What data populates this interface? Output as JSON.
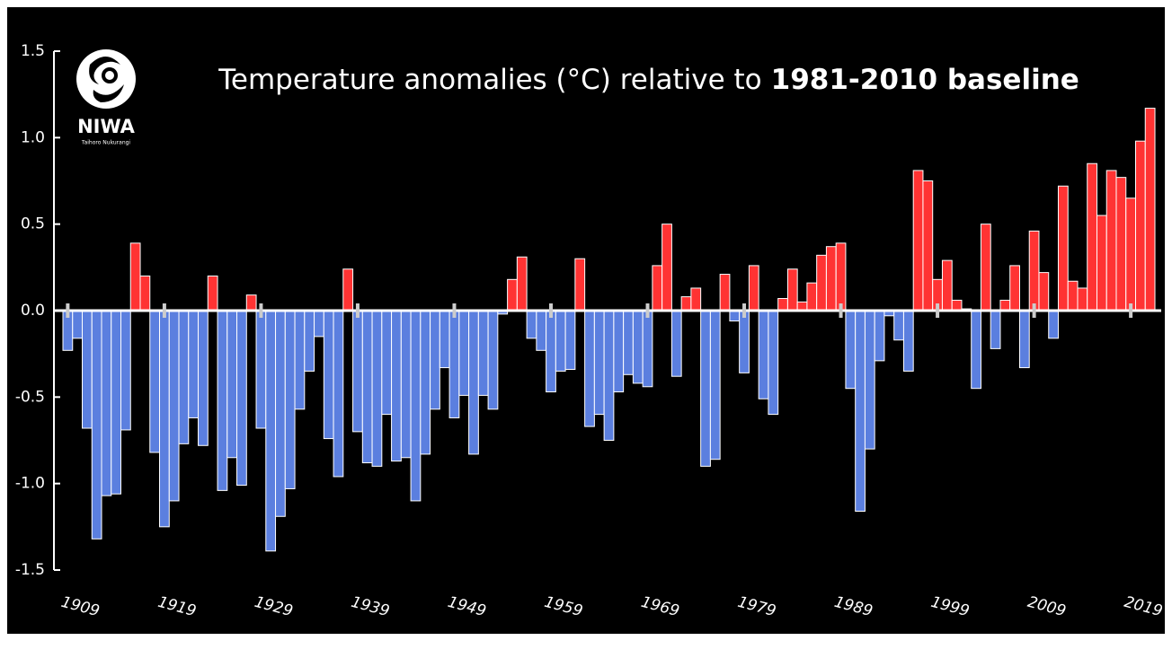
{
  "chart_data": {
    "type": "bar",
    "title": "Temperature anomalies (°C) relative to",
    "title_emphasis": "1981-2010 baseline",
    "logo_name": "NIWA",
    "logo_subtitle": "Taihoro Nukurangi",
    "categories": [
      "1909",
      null,
      null,
      null,
      null,
      null,
      null,
      null,
      null,
      null,
      "1919",
      null,
      null,
      null,
      null,
      null,
      null,
      null,
      null,
      null,
      "1929",
      null,
      null,
      null,
      null,
      null,
      null,
      null,
      null,
      null,
      "1939",
      null,
      null,
      null,
      null,
      null,
      null,
      null,
      null,
      null,
      "1949",
      null,
      null,
      null,
      null,
      null,
      null,
      null,
      null,
      null,
      "1959",
      null,
      null,
      null,
      null,
      null,
      null,
      null,
      null,
      null,
      "1969",
      null,
      null,
      null,
      null,
      null,
      null,
      null,
      null,
      null,
      "1979",
      null,
      null,
      null,
      null,
      null,
      null,
      null,
      null,
      null,
      "1989",
      null,
      null,
      null,
      null,
      null,
      null,
      null,
      null,
      null,
      "1999",
      null,
      null,
      null,
      null,
      null,
      null,
      null,
      null,
      null,
      "2009",
      null,
      null,
      null,
      null,
      null,
      null,
      null,
      null,
      null,
      "2019",
      null,
      null
    ],
    "values": [
      -0.23,
      -0.16,
      -0.68,
      -1.32,
      -1.07,
      -1.06,
      -0.69,
      0.39,
      0.2,
      -0.82,
      -1.25,
      -1.1,
      -0.77,
      -0.62,
      -0.78,
      0.2,
      -1.04,
      -0.85,
      -1.01,
      0.09,
      -0.68,
      -1.39,
      -1.19,
      -1.03,
      -0.57,
      -0.35,
      -0.15,
      -0.74,
      -0.96,
      0.24,
      -0.7,
      -0.88,
      -0.9,
      -0.6,
      -0.87,
      -0.85,
      -1.1,
      -0.83,
      -0.57,
      -0.33,
      -0.62,
      -0.49,
      -0.83,
      -0.49,
      -0.57,
      -0.02,
      0.18,
      0.31,
      -0.16,
      -0.23,
      -0.47,
      -0.35,
      -0.34,
      0.3,
      -0.67,
      -0.6,
      -0.75,
      -0.47,
      -0.37,
      -0.42,
      -0.44,
      0.26,
      0.5,
      -0.38,
      0.08,
      0.13,
      -0.9,
      -0.86,
      0.21,
      -0.06,
      -0.36,
      0.26,
      -0.51,
      -0.6,
      0.07,
      0.24,
      0.05,
      0.16,
      0.32,
      0.37,
      0.39,
      -0.45,
      -1.16,
      -0.8,
      -0.29,
      -0.03,
      -0.17,
      -0.35,
      0.81,
      0.75,
      0.18,
      0.29,
      0.06,
      0.01,
      -0.45,
      0.5,
      -0.22,
      0.06,
      0.26,
      -0.33,
      0.46,
      0.22,
      -0.16,
      0.72,
      0.17,
      0.13,
      0.85,
      0.55,
      0.81,
      0.77,
      0.65,
      0.98,
      1.17
    ],
    "positive_color": "#ff3333",
    "negative_color": "#5b7fdf",
    "ylim": [
      -1.5,
      1.5
    ],
    "yticks": [
      1.5,
      {
        "value": 1,
        "label": "1.0"
      },
      0.5,
      {
        "value": 0,
        "label": "0.0"
      },
      -0.5,
      {
        "value": -1,
        "label": "-1.0"
      },
      -1.5
    ]
  }
}
